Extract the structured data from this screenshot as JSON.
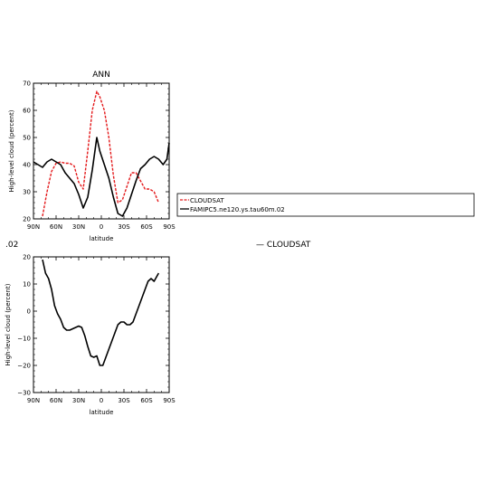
{
  "chart_data": [
    {
      "type": "line",
      "title": "ANN",
      "xlabel": "latitude",
      "ylabel": "High-level cloud (percent)",
      "xlim": [
        90,
        -90
      ],
      "ylim": [
        20,
        70
      ],
      "x_ticks": [
        90,
        60,
        30,
        0,
        -30,
        -60,
        -90
      ],
      "x_tick_labels": [
        "90N",
        "60N",
        "30N",
        "0",
        "30S",
        "60S",
        "90S"
      ],
      "y_ticks": [
        20,
        30,
        40,
        50,
        60,
        70
      ],
      "y_tick_labels": [
        "20",
        "30",
        "40",
        "50",
        "60",
        "70"
      ],
      "legend": {
        "placement": "right",
        "entries": [
          "CLOUDSAT",
          "FAMIPC5.ne120.ys.tau60m.02"
        ]
      },
      "series": [
        {
          "name": "CLOUDSAT",
          "color": "#e41a1c",
          "dash": true,
          "x": [
            78,
            72,
            66,
            60,
            54,
            48,
            42,
            36,
            30,
            24,
            18,
            12,
            6,
            2,
            -4,
            -10,
            -16,
            -22,
            -28,
            -34,
            -40,
            -46,
            -52,
            -58,
            -64,
            -70,
            -76
          ],
          "y": [
            21,
            30,
            37.5,
            40.5,
            41,
            40.5,
            40.5,
            39.5,
            33.5,
            31,
            45,
            60,
            67,
            65,
            60,
            50,
            36,
            26,
            27,
            32,
            37,
            37,
            34,
            31,
            31,
            30,
            26
          ]
        },
        {
          "name": "FAMIPC5.ne120.ys.tau60m.02",
          "color": "#000000",
          "dash": false,
          "x": [
            90,
            84,
            78,
            72,
            66,
            60,
            54,
            48,
            42,
            36,
            30,
            24,
            18,
            12,
            6,
            2,
            -4,
            -10,
            -16,
            -22,
            -28,
            -34,
            -40,
            -46,
            -52,
            -58,
            -64,
            -70,
            -76,
            -82,
            -87,
            -90
          ],
          "y": [
            41,
            40,
            39,
            41,
            42,
            41,
            40,
            37,
            35,
            33,
            29,
            24,
            28,
            38,
            50,
            45,
            40,
            35,
            28,
            22,
            21,
            24,
            29,
            34,
            38.5,
            40,
            42,
            43,
            42,
            40,
            42,
            48
          ]
        }
      ]
    },
    {
      "type": "line",
      "title": "",
      "header_left": ".02",
      "header_right": "— CLOUDSAT",
      "xlabel": "latitude",
      "ylabel": "High-level cloud (percent)",
      "xlim": [
        90,
        -90
      ],
      "ylim": [
        -30,
        20
      ],
      "x_ticks": [
        90,
        60,
        30,
        0,
        -30,
        -60,
        -90
      ],
      "x_tick_labels": [
        "90N",
        "60N",
        "30N",
        "0",
        "30S",
        "60S",
        "90S"
      ],
      "y_ticks": [
        -30,
        -20,
        -10,
        0,
        10,
        20
      ],
      "y_tick_labels": [
        "−30",
        "−20",
        "−10",
        "0",
        "10",
        "20"
      ],
      "series": [
        {
          "color": "#000000",
          "dash": false,
          "x": [
            78,
            74,
            70,
            66,
            62,
            58,
            54,
            50,
            46,
            42,
            38,
            34,
            30,
            26,
            22,
            18,
            14,
            10,
            6,
            2,
            -2,
            -6,
            -10,
            -14,
            -18,
            -22,
            -26,
            -30,
            -34,
            -38,
            -42,
            -46,
            -50,
            -54,
            -58,
            -62,
            -66,
            -70,
            -76
          ],
          "y": [
            19,
            14,
            12,
            8,
            2,
            -1,
            -3,
            -6,
            -7,
            -7,
            -6.5,
            -6,
            -5.5,
            -6,
            -9,
            -13,
            -16.5,
            -17,
            -16.5,
            -20,
            -20,
            -17,
            -14,
            -11,
            -8,
            -5,
            -4,
            -4,
            -5,
            -5,
            -4,
            -1,
            2,
            5,
            8,
            11,
            12,
            11,
            14
          ]
        }
      ]
    }
  ]
}
